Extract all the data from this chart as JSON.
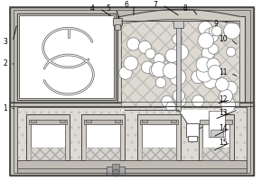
{
  "bg_color": "#e8e4dc",
  "lc": "#444444",
  "hatch_bg": "#c8c4bc",
  "white": "#ffffff",
  "light_gray": "#d8d4cc",
  "med_gray": "#b8b4ac",
  "figure_width": 3.0,
  "figure_height": 2.0,
  "dpi": 100
}
